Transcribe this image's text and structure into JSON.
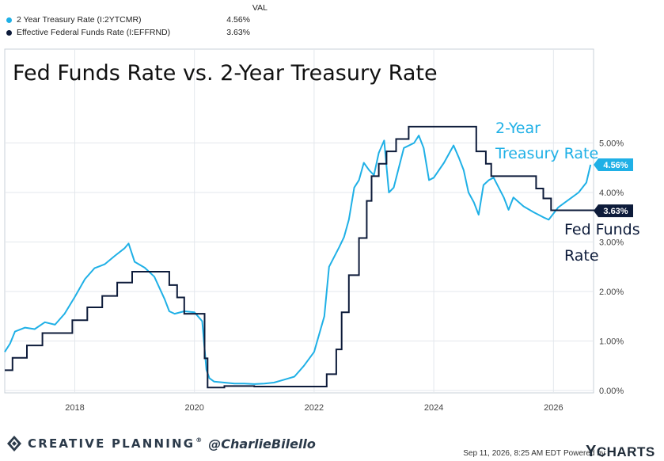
{
  "legend": {
    "val_header": "VAL",
    "items": [
      {
        "label": "2 Year Treasury Rate (I:2YTCMR)",
        "value": "4.56%",
        "color": "#1fb0e6"
      },
      {
        "label": "Effective Federal Funds Rate (I:EFFRND)",
        "value": "3.63%",
        "color": "#0d1b3a"
      }
    ]
  },
  "chart_data": {
    "type": "line",
    "title": "Fed Funds Rate vs. 2-Year Treasury Rate",
    "x_tick_labels": [
      "2018",
      "2020",
      "2022",
      "2024",
      "2026"
    ],
    "x_range": [
      2016.83,
      2026.67
    ],
    "y_tick_labels": [
      "0.00%",
      "1.00%",
      "2.00%",
      "3.00%",
      "4.00%",
      "5.00%"
    ],
    "ylim": [
      0,
      5.85
    ],
    "grid": true,
    "series": [
      {
        "name": "2 Year Treasury Rate (I:2YTCMR)",
        "color": "#1fb0e6",
        "last_value_label": "4.56%",
        "annotation": [
          "2-Year",
          "Treasury Rate"
        ],
        "points": [
          [
            2016.83,
            0.78
          ],
          [
            2016.92,
            0.95
          ],
          [
            2017.0,
            1.19
          ],
          [
            2017.17,
            1.27
          ],
          [
            2017.33,
            1.24
          ],
          [
            2017.5,
            1.38
          ],
          [
            2017.67,
            1.33
          ],
          [
            2017.83,
            1.55
          ],
          [
            2018.0,
            1.89
          ],
          [
            2018.17,
            2.25
          ],
          [
            2018.33,
            2.47
          ],
          [
            2018.5,
            2.55
          ],
          [
            2018.67,
            2.72
          ],
          [
            2018.83,
            2.87
          ],
          [
            2018.9,
            2.97
          ],
          [
            2019.0,
            2.6
          ],
          [
            2019.17,
            2.48
          ],
          [
            2019.33,
            2.3
          ],
          [
            2019.5,
            1.85
          ],
          [
            2019.58,
            1.6
          ],
          [
            2019.67,
            1.55
          ],
          [
            2019.83,
            1.6
          ],
          [
            2020.0,
            1.58
          ],
          [
            2020.13,
            1.4
          ],
          [
            2020.2,
            0.42
          ],
          [
            2020.25,
            0.25
          ],
          [
            2020.33,
            0.18
          ],
          [
            2020.5,
            0.16
          ],
          [
            2020.67,
            0.14
          ],
          [
            2020.83,
            0.14
          ],
          [
            2021.0,
            0.13
          ],
          [
            2021.17,
            0.14
          ],
          [
            2021.33,
            0.16
          ],
          [
            2021.5,
            0.22
          ],
          [
            2021.67,
            0.28
          ],
          [
            2021.83,
            0.5
          ],
          [
            2022.0,
            0.78
          ],
          [
            2022.17,
            1.5
          ],
          [
            2022.25,
            2.5
          ],
          [
            2022.42,
            2.9
          ],
          [
            2022.5,
            3.1
          ],
          [
            2022.58,
            3.45
          ],
          [
            2022.67,
            4.1
          ],
          [
            2022.75,
            4.25
          ],
          [
            2022.83,
            4.6
          ],
          [
            2022.92,
            4.45
          ],
          [
            2023.0,
            4.35
          ],
          [
            2023.08,
            4.8
          ],
          [
            2023.17,
            5.05
          ],
          [
            2023.25,
            4.0
          ],
          [
            2023.33,
            4.1
          ],
          [
            2023.5,
            4.9
          ],
          [
            2023.67,
            5.0
          ],
          [
            2023.75,
            5.15
          ],
          [
            2023.83,
            4.9
          ],
          [
            2023.92,
            4.25
          ],
          [
            2024.0,
            4.3
          ],
          [
            2024.17,
            4.6
          ],
          [
            2024.33,
            4.95
          ],
          [
            2024.42,
            4.7
          ],
          [
            2024.5,
            4.45
          ],
          [
            2024.58,
            4.0
          ],
          [
            2024.67,
            3.8
          ],
          [
            2024.75,
            3.55
          ],
          [
            2024.83,
            4.15
          ],
          [
            2024.92,
            4.25
          ],
          [
            2025.0,
            4.3
          ],
          [
            2025.17,
            3.9
          ],
          [
            2025.25,
            3.65
          ],
          [
            2025.33,
            3.9
          ],
          [
            2025.5,
            3.72
          ],
          [
            2025.67,
            3.6
          ],
          [
            2025.83,
            3.5
          ],
          [
            2025.92,
            3.45
          ],
          [
            2026.08,
            3.7
          ],
          [
            2026.25,
            3.85
          ],
          [
            2026.42,
            4.0
          ],
          [
            2026.55,
            4.2
          ],
          [
            2026.62,
            4.56
          ]
        ]
      },
      {
        "name": "Effective Federal Funds Rate (I:EFFRND)",
        "color": "#0d1b3a",
        "last_value_label": "3.63%",
        "annotation": [
          "Fed Funds",
          "Rate"
        ],
        "steps": [
          [
            2016.83,
            0.41
          ],
          [
            2016.96,
            0.66
          ],
          [
            2017.2,
            0.91
          ],
          [
            2017.46,
            1.16
          ],
          [
            2017.96,
            1.42
          ],
          [
            2018.21,
            1.68
          ],
          [
            2018.46,
            1.91
          ],
          [
            2018.71,
            2.18
          ],
          [
            2018.96,
            2.4
          ],
          [
            2019.58,
            2.13
          ],
          [
            2019.71,
            1.88
          ],
          [
            2019.83,
            1.55
          ],
          [
            2020.17,
            0.65
          ],
          [
            2020.22,
            0.06
          ],
          [
            2020.5,
            0.09
          ],
          [
            2021.0,
            0.08
          ],
          [
            2021.5,
            0.08
          ],
          [
            2022.21,
            0.33
          ],
          [
            2022.37,
            0.83
          ],
          [
            2022.46,
            1.58
          ],
          [
            2022.58,
            2.33
          ],
          [
            2022.75,
            3.08
          ],
          [
            2022.88,
            3.83
          ],
          [
            2022.96,
            4.33
          ],
          [
            2023.08,
            4.58
          ],
          [
            2023.21,
            4.83
          ],
          [
            2023.37,
            5.08
          ],
          [
            2023.58,
            5.33
          ],
          [
            2024.71,
            4.83
          ],
          [
            2024.87,
            4.58
          ],
          [
            2024.96,
            4.33
          ],
          [
            2025.71,
            4.08
          ],
          [
            2025.83,
            3.88
          ],
          [
            2025.96,
            3.64
          ],
          [
            2026.67,
            3.63
          ]
        ]
      }
    ]
  },
  "footer": {
    "brand": "CREATIVE PLANNING",
    "brand_mark": "®",
    "handle": "@CharlieBilello",
    "timestamp": "Sep 11, 2026, 8:25 AM EDT",
    "powered_by": "Powered by",
    "logo_text": "CHARTS",
    "logo_y": "Y"
  }
}
